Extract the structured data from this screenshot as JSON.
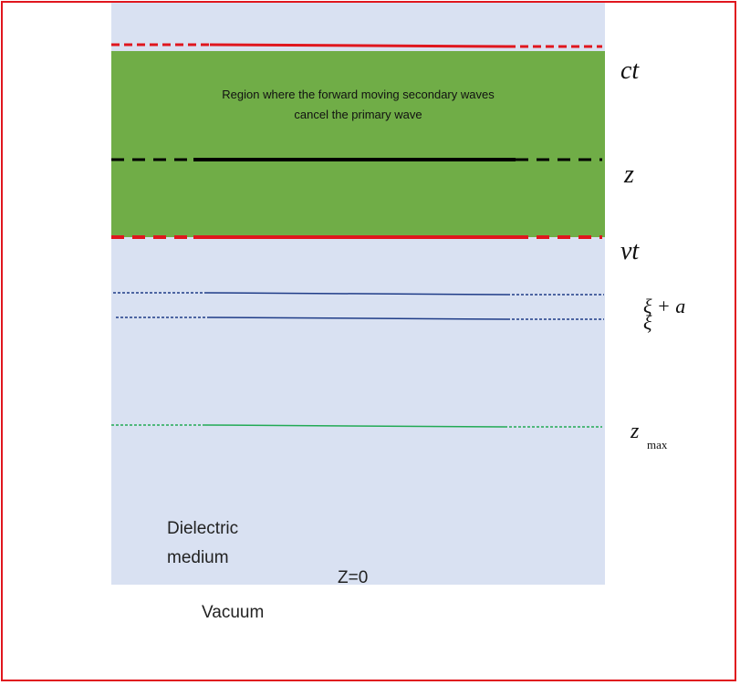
{
  "region_caption": {
    "line1": "Region where the forward moving secondary waves",
    "line2": "cancel the primary wave"
  },
  "labels": {
    "ct": "ct",
    "z": "z",
    "vt": "vt",
    "xi_plus_a": "ξ + a",
    "xi": "ξ",
    "zmax_base": "z",
    "zmax_sub": "max"
  },
  "medium": {
    "line1": "Dielectric",
    "line2": "medium",
    "z0": "Z=0",
    "vacuum": "Vacuum"
  },
  "colors": {
    "frame": "#e0161e",
    "medium": "#d9e1f2",
    "green_region": "#70ad47",
    "red_lines": "#e0161e",
    "black_line": "#000000",
    "blue_lines": "#1f3c88",
    "green_line": "#22aa55"
  }
}
